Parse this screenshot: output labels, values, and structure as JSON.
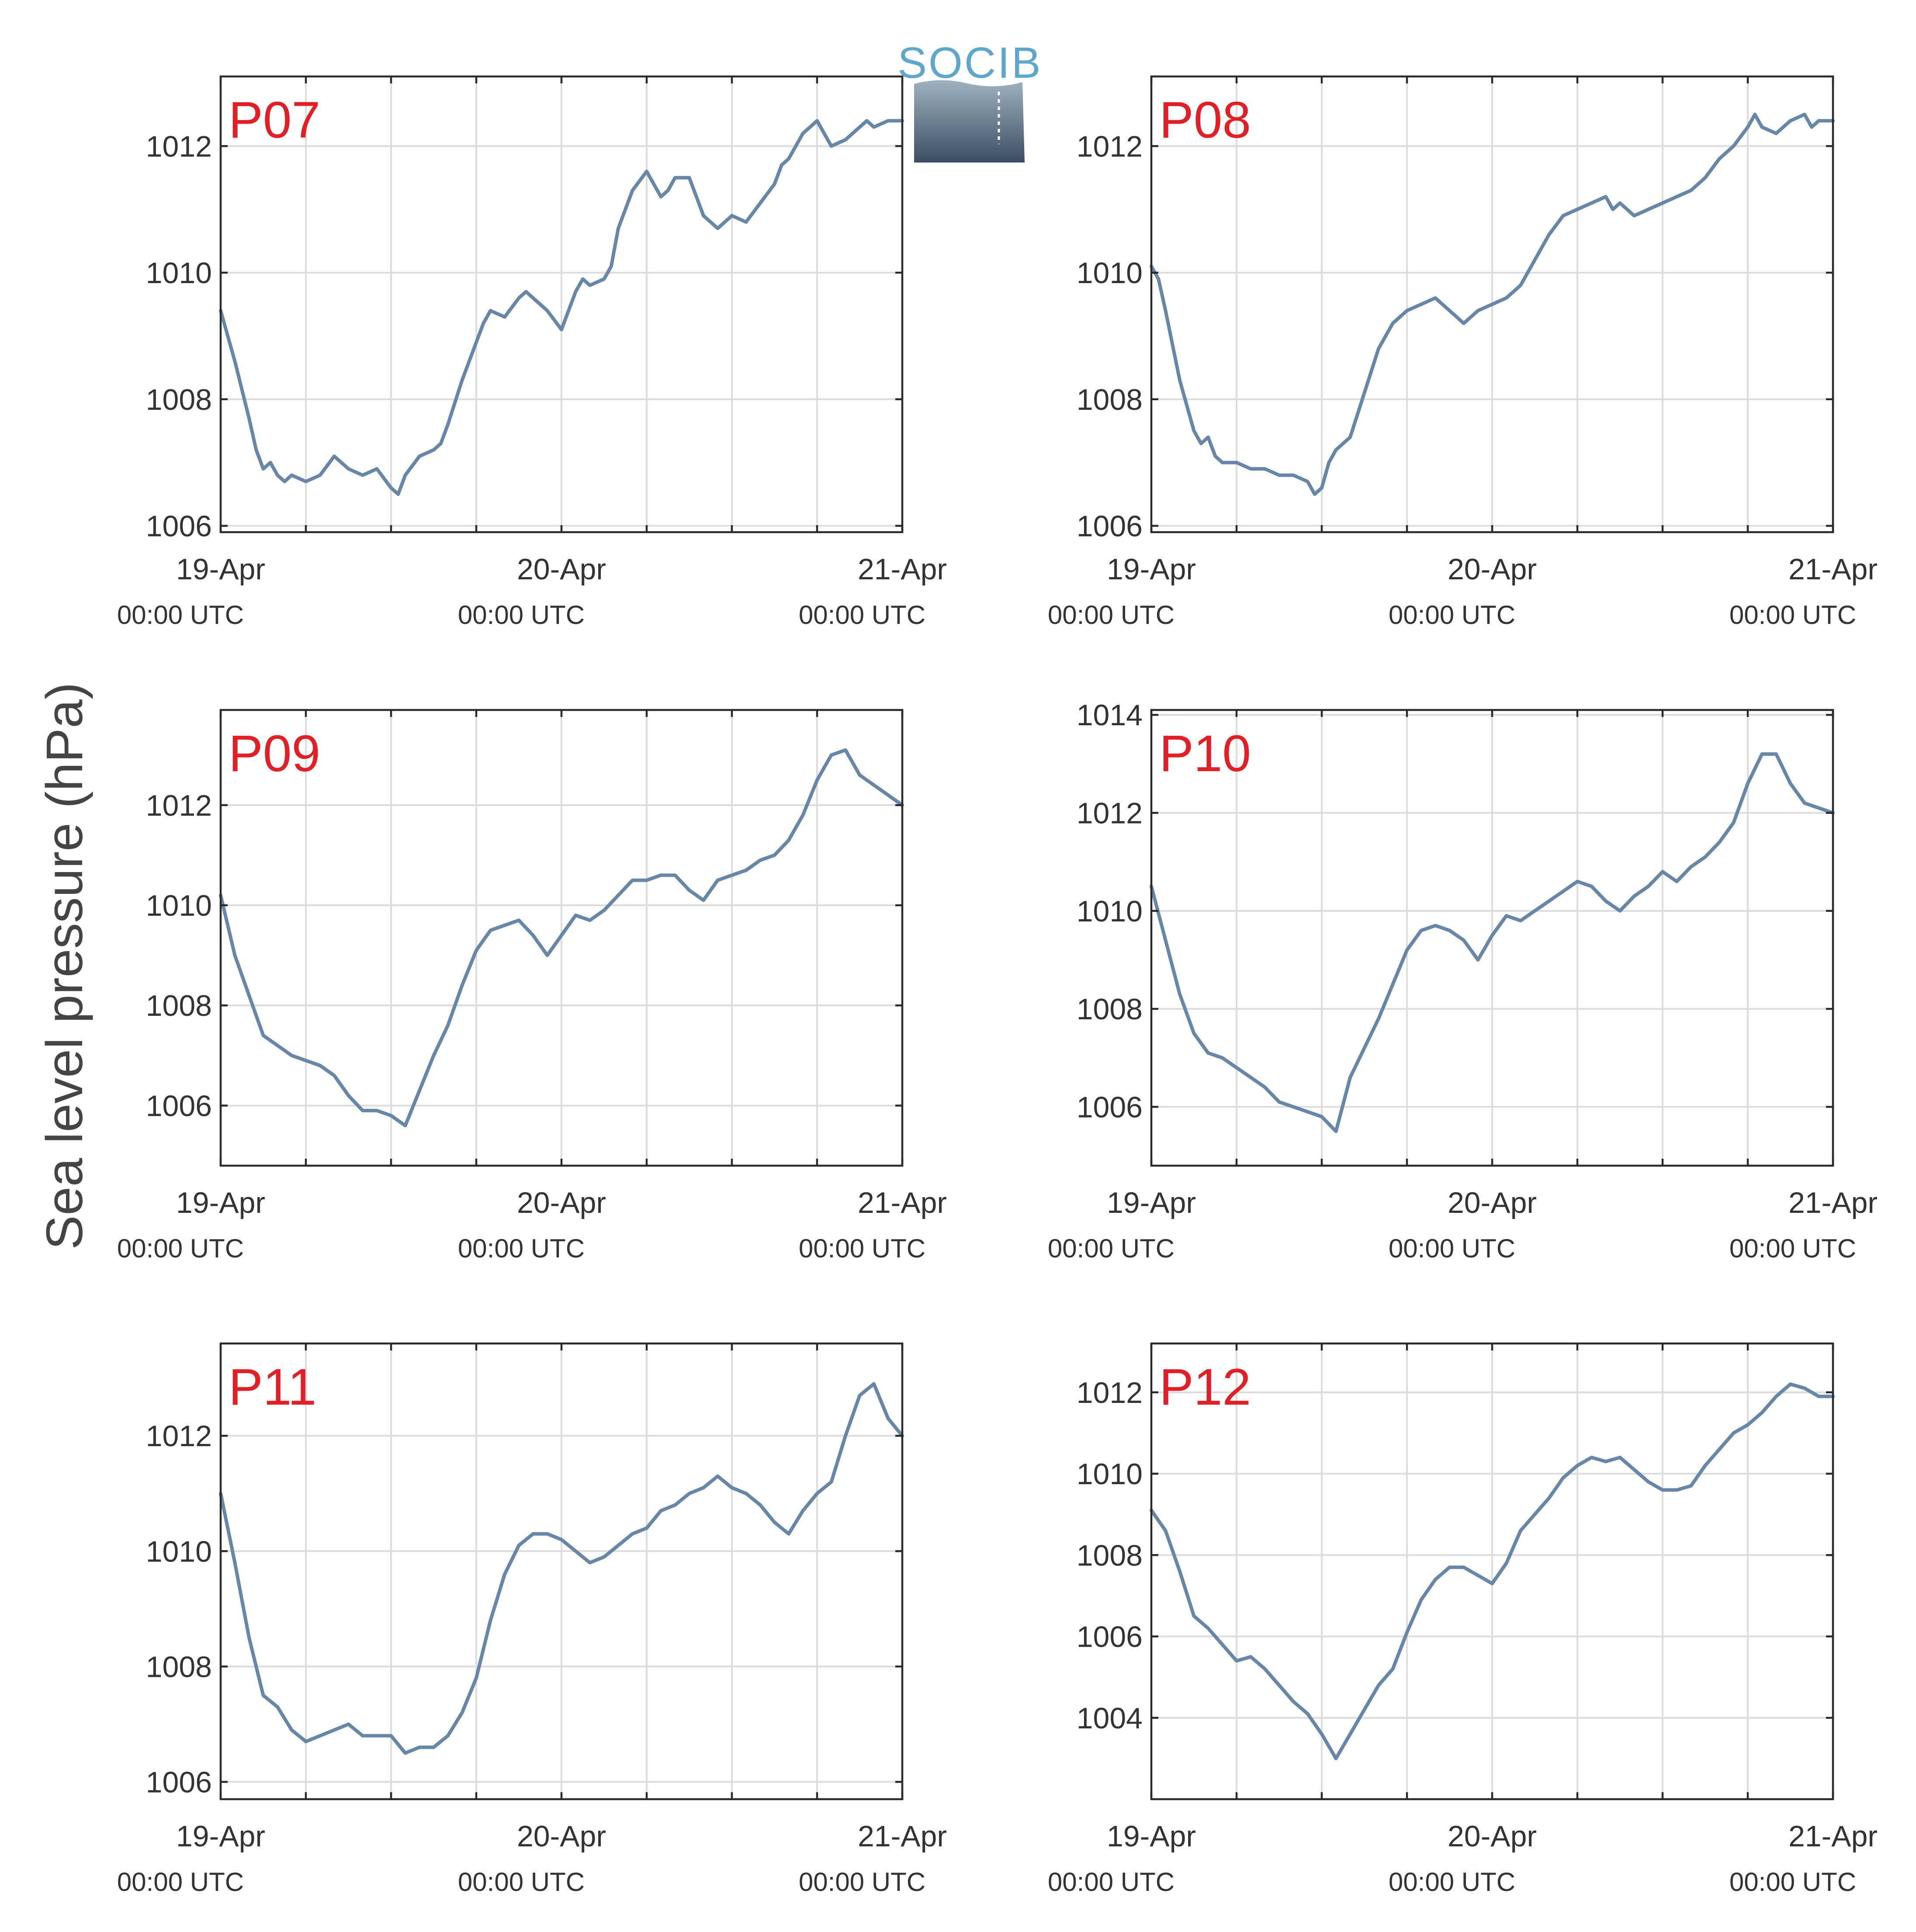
{
  "ylabel": "Sea level pressure (hPa)",
  "logo": {
    "text": "SOCIB",
    "color": "#5ea6cc"
  },
  "colors": {
    "series": "#6886a6",
    "label": "#e11f26"
  },
  "x_tick_dates": [
    "19-Apr",
    "20-Apr",
    "21-Apr"
  ],
  "x_tick_times": [
    "00:00 UTC",
    "00:00 UTC",
    "00:00 UTC"
  ],
  "chart_data": [
    {
      "type": "line",
      "label": "P07",
      "x_unit": "hours since 19-Apr 00:00 UTC",
      "xlim": [
        0,
        48
      ],
      "ylim": [
        1005.9,
        1013.1
      ],
      "yticks": [
        1006,
        1008,
        1010,
        1012
      ],
      "grid": true,
      "series": [
        {
          "x": [
            0,
            1,
            2,
            2.5,
            3,
            3.5,
            4,
            4.5,
            5,
            6,
            7,
            8,
            9,
            10,
            11,
            12,
            12.5,
            13,
            14,
            15,
            15.5,
            16,
            17,
            18,
            18.5,
            19,
            20,
            21,
            21.5,
            22,
            23,
            24,
            25,
            25.5,
            26,
            27,
            27.5,
            28,
            29,
            30,
            31,
            31.5,
            32,
            33,
            33.5,
            34,
            35,
            36,
            37,
            38,
            39,
            39.5,
            40,
            41,
            42,
            43,
            44,
            45,
            45.5,
            46,
            47,
            48
          ],
          "y": [
            1009.4,
            1008.6,
            1007.7,
            1007.2,
            1006.9,
            1007.0,
            1006.8,
            1006.7,
            1006.8,
            1006.7,
            1006.8,
            1007.1,
            1006.9,
            1006.8,
            1006.9,
            1006.6,
            1006.5,
            1006.8,
            1007.1,
            1007.2,
            1007.3,
            1007.6,
            1008.3,
            1008.9,
            1009.2,
            1009.4,
            1009.3,
            1009.6,
            1009.7,
            1009.6,
            1009.4,
            1009.1,
            1009.7,
            1009.9,
            1009.8,
            1009.9,
            1010.1,
            1010.7,
            1011.3,
            1011.6,
            1011.2,
            1011.3,
            1011.5,
            1011.5,
            1011.2,
            1010.9,
            1010.7,
            1010.9,
            1010.8,
            1011.1,
            1011.4,
            1011.7,
            1011.8,
            1012.2,
            1012.4,
            1012.0,
            1012.1,
            1012.3,
            1012.4,
            1012.3,
            1012.4,
            1012.4
          ]
        }
      ]
    },
    {
      "type": "line",
      "label": "P08",
      "x_unit": "hours since 19-Apr 00:00 UTC",
      "xlim": [
        0,
        48
      ],
      "ylim": [
        1005.9,
        1013.1
      ],
      "yticks": [
        1006,
        1008,
        1010,
        1012
      ],
      "grid": true,
      "series": [
        {
          "x": [
            0,
            0.5,
            1,
            2,
            3,
            3.5,
            4,
            4.5,
            5,
            6,
            7,
            8,
            9,
            10,
            11,
            11.5,
            12,
            12.5,
            13,
            14,
            15,
            16,
            17,
            18,
            19,
            20,
            21,
            22,
            23,
            24,
            25,
            26,
            27,
            28,
            29,
            30,
            31,
            32,
            32.5,
            33,
            34,
            35,
            36,
            37,
            38,
            39,
            40,
            41,
            42,
            42.5,
            43,
            44,
            45,
            46,
            46.5,
            47,
            48
          ],
          "y": [
            1010.1,
            1009.9,
            1009.4,
            1008.3,
            1007.5,
            1007.3,
            1007.4,
            1007.1,
            1007.0,
            1007.0,
            1006.9,
            1006.9,
            1006.8,
            1006.8,
            1006.7,
            1006.5,
            1006.6,
            1007.0,
            1007.2,
            1007.4,
            1008.1,
            1008.8,
            1009.2,
            1009.4,
            1009.5,
            1009.6,
            1009.4,
            1009.2,
            1009.4,
            1009.5,
            1009.6,
            1009.8,
            1010.2,
            1010.6,
            1010.9,
            1011.0,
            1011.1,
            1011.2,
            1011.0,
            1011.1,
            1010.9,
            1011.0,
            1011.1,
            1011.2,
            1011.3,
            1011.5,
            1011.8,
            1012.0,
            1012.3,
            1012.5,
            1012.3,
            1012.2,
            1012.4,
            1012.5,
            1012.3,
            1012.4,
            1012.4
          ]
        }
      ]
    },
    {
      "type": "line",
      "label": "P09",
      "x_unit": "hours since 19-Apr 00:00 UTC",
      "xlim": [
        0,
        48
      ],
      "ylim": [
        1004.8,
        1013.9
      ],
      "yticks": [
        1006,
        1008,
        1010,
        1012
      ],
      "grid": true,
      "series": [
        {
          "x": [
            0,
            1,
            2,
            3,
            4,
            5,
            6,
            7,
            8,
            9,
            10,
            11,
            12,
            13,
            14,
            15,
            16,
            17,
            18,
            19,
            20,
            21,
            22,
            23,
            24,
            25,
            26,
            27,
            28,
            29,
            30,
            31,
            32,
            33,
            34,
            35,
            36,
            37,
            38,
            39,
            40,
            41,
            42,
            43,
            44,
            45,
            46,
            47,
            48
          ],
          "y": [
            1010.2,
            1009.0,
            1008.2,
            1007.4,
            1007.2,
            1007.0,
            1006.9,
            1006.8,
            1006.6,
            1006.2,
            1005.9,
            1005.9,
            1005.8,
            1005.6,
            1006.3,
            1007.0,
            1007.6,
            1008.4,
            1009.1,
            1009.5,
            1009.6,
            1009.7,
            1009.4,
            1009.0,
            1009.4,
            1009.8,
            1009.7,
            1009.9,
            1010.2,
            1010.5,
            1010.5,
            1010.6,
            1010.6,
            1010.3,
            1010.1,
            1010.5,
            1010.6,
            1010.7,
            1010.9,
            1011.0,
            1011.3,
            1011.8,
            1012.5,
            1013.0,
            1013.1,
            1012.6,
            1012.4,
            1012.2,
            1012.0
          ]
        }
      ]
    },
    {
      "type": "line",
      "label": "P10",
      "x_unit": "hours since 19-Apr 00:00 UTC",
      "xlim": [
        0,
        48
      ],
      "ylim": [
        1004.8,
        1014.1
      ],
      "yticks": [
        1006,
        1008,
        1010,
        1012,
        1014
      ],
      "grid": true,
      "series": [
        {
          "x": [
            0,
            1,
            2,
            3,
            4,
            5,
            6,
            7,
            8,
            9,
            10,
            11,
            12,
            13,
            14,
            15,
            16,
            17,
            18,
            19,
            20,
            21,
            22,
            23,
            24,
            25,
            26,
            27,
            28,
            29,
            30,
            31,
            32,
            33,
            34,
            35,
            36,
            37,
            38,
            39,
            40,
            41,
            42,
            43,
            44,
            45,
            46,
            47,
            48
          ],
          "y": [
            1010.5,
            1009.4,
            1008.3,
            1007.5,
            1007.1,
            1007.0,
            1006.8,
            1006.6,
            1006.4,
            1006.1,
            1006.0,
            1005.9,
            1005.8,
            1005.5,
            1006.6,
            1007.2,
            1007.8,
            1008.5,
            1009.2,
            1009.6,
            1009.7,
            1009.6,
            1009.4,
            1009.0,
            1009.5,
            1009.9,
            1009.8,
            1010.0,
            1010.2,
            1010.4,
            1010.6,
            1010.5,
            1010.2,
            1010.0,
            1010.3,
            1010.5,
            1010.8,
            1010.6,
            1010.9,
            1011.1,
            1011.4,
            1011.8,
            1012.6,
            1013.2,
            1013.2,
            1012.6,
            1012.2,
            1012.1,
            1012.0
          ]
        }
      ]
    },
    {
      "type": "line",
      "label": "P11",
      "x_unit": "hours since 19-Apr 00:00 UTC",
      "xlim": [
        0,
        48
      ],
      "ylim": [
        1005.7,
        1013.6
      ],
      "yticks": [
        1006,
        1008,
        1010,
        1012
      ],
      "grid": true,
      "series": [
        {
          "x": [
            0,
            1,
            2,
            3,
            4,
            5,
            6,
            7,
            8,
            9,
            10,
            11,
            12,
            13,
            14,
            15,
            16,
            17,
            18,
            19,
            20,
            21,
            22,
            23,
            24,
            25,
            26,
            27,
            28,
            29,
            30,
            31,
            32,
            33,
            34,
            35,
            36,
            37,
            38,
            39,
            40,
            41,
            42,
            43,
            44,
            45,
            46,
            47,
            48
          ],
          "y": [
            1011.0,
            1009.8,
            1008.5,
            1007.5,
            1007.3,
            1006.9,
            1006.7,
            1006.8,
            1006.9,
            1007.0,
            1006.8,
            1006.8,
            1006.8,
            1006.5,
            1006.6,
            1006.6,
            1006.8,
            1007.2,
            1007.8,
            1008.8,
            1009.6,
            1010.1,
            1010.3,
            1010.3,
            1010.2,
            1010.0,
            1009.8,
            1009.9,
            1010.1,
            1010.3,
            1010.4,
            1010.7,
            1010.8,
            1011.0,
            1011.1,
            1011.3,
            1011.1,
            1011.0,
            1010.8,
            1010.5,
            1010.3,
            1010.7,
            1011.0,
            1011.2,
            1012.0,
            1012.7,
            1012.9,
            1012.3,
            1012.0
          ]
        }
      ]
    },
    {
      "type": "line",
      "label": "P12",
      "x_unit": "hours since 19-Apr 00:00 UTC",
      "xlim": [
        0,
        48
      ],
      "ylim": [
        1002.0,
        1013.2
      ],
      "yticks": [
        1004,
        1006,
        1008,
        1010,
        1012
      ],
      "grid": true,
      "series": [
        {
          "x": [
            0,
            1,
            2,
            3,
            4,
            5,
            6,
            7,
            8,
            9,
            10,
            11,
            12,
            13,
            14,
            15,
            16,
            17,
            18,
            19,
            20,
            21,
            22,
            23,
            24,
            25,
            26,
            27,
            28,
            29,
            30,
            31,
            32,
            33,
            34,
            35,
            36,
            37,
            38,
            39,
            40,
            41,
            42,
            43,
            44,
            45,
            46,
            47,
            48
          ],
          "y": [
            1009.1,
            1008.6,
            1007.6,
            1006.5,
            1006.2,
            1005.8,
            1005.4,
            1005.5,
            1005.2,
            1004.8,
            1004.4,
            1004.1,
            1003.6,
            1003.0,
            1003.6,
            1004.2,
            1004.8,
            1005.2,
            1006.1,
            1006.9,
            1007.4,
            1007.7,
            1007.7,
            1007.5,
            1007.3,
            1007.8,
            1008.6,
            1009.0,
            1009.4,
            1009.9,
            1010.2,
            1010.4,
            1010.3,
            1010.4,
            1010.1,
            1009.8,
            1009.6,
            1009.6,
            1009.7,
            1010.2,
            1010.6,
            1011.0,
            1011.2,
            1011.5,
            1011.9,
            1012.2,
            1012.1,
            1011.9,
            1011.9
          ]
        }
      ]
    }
  ]
}
